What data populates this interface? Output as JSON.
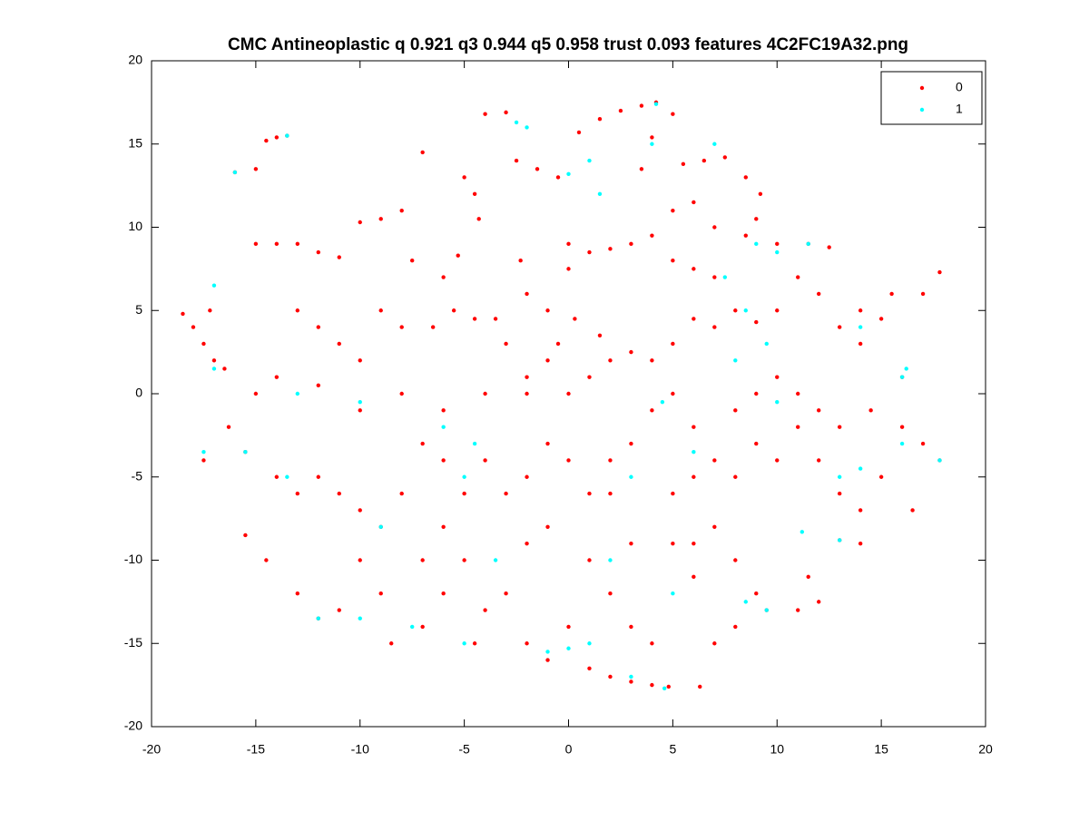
{
  "chart_data": {
    "type": "scatter",
    "title": "CMC Antineoplastic q 0.921 q3 0.944 q5 0.958 trust 0.093 features 4C2FC19A32.png",
    "xlim": [
      -20,
      20
    ],
    "ylim": [
      -20,
      20
    ],
    "xticks": [
      -20,
      -15,
      -10,
      -5,
      0,
      5,
      10,
      15,
      20
    ],
    "yticks": [
      -20,
      -15,
      -10,
      -5,
      0,
      5,
      10,
      15,
      20
    ],
    "grid": false,
    "legend": "top-right",
    "series": [
      {
        "name": "0",
        "color": "#ff0000",
        "x": [
          -18.5,
          -18,
          -17.5,
          -17,
          -16.5,
          -17.2,
          -16.3,
          -17.5,
          -15.5,
          -15.5,
          -16,
          -15,
          -14.5,
          -14,
          -13.5,
          -15,
          -14,
          -13,
          -12,
          -11,
          -10,
          -9,
          -8,
          -7,
          -7.5,
          -6,
          -5.3,
          -5,
          -4.5,
          -4.3,
          -4,
          -3,
          -2.3,
          -2.5,
          -1.5,
          -0.5,
          0.5,
          1.5,
          2.5,
          3.5,
          4.2,
          5,
          4,
          3.5,
          5.5,
          6.5,
          7.5,
          8.5,
          9.2,
          9,
          8.5,
          7,
          6,
          5,
          4,
          3,
          2,
          1,
          0,
          0,
          0.3,
          -0.5,
          -1,
          -2,
          -3.5,
          -4.5,
          -5.5,
          -6.5,
          -8,
          -9,
          -10,
          -11,
          -12,
          -13,
          -14,
          -15,
          -12,
          -10,
          -8,
          -6,
          -4,
          -2,
          0,
          1,
          2,
          3,
          4,
          5,
          6,
          7,
          8,
          9,
          10,
          11,
          12,
          12.5,
          10,
          11.5,
          13,
          14,
          15,
          15.5,
          17,
          17.8,
          14,
          14.5,
          13,
          12,
          11,
          10,
          9,
          8,
          6,
          5,
          4,
          3,
          2,
          1,
          0,
          -1,
          -2,
          -3,
          -4,
          -5,
          -6,
          -7,
          -8,
          -9,
          -10,
          -11,
          -12,
          -13,
          -14,
          -14.5,
          -13,
          -12,
          -11,
          -10,
          -9,
          -8.5,
          -7,
          -6,
          -5,
          -4,
          -3,
          -2,
          -1,
          0,
          1,
          2,
          3,
          4,
          4.8,
          6.3,
          2,
          3,
          4,
          5,
          6,
          7,
          8,
          9,
          9.5,
          8,
          7,
          6,
          5,
          6,
          7,
          8,
          9,
          10,
          11,
          12,
          13,
          14,
          15,
          16,
          17,
          17.8,
          16.5,
          13,
          14,
          11.5,
          11,
          12,
          16,
          -2,
          -1,
          1,
          2,
          3,
          -6,
          -7,
          -4.5,
          1.5,
          -1,
          7,
          6,
          5,
          -3,
          -2
        ],
        "values": [
          4.8,
          4,
          3,
          2,
          1.5,
          5,
          -2,
          -4,
          -3.5,
          -8.5,
          13.3,
          13.5,
          15.2,
          15.4,
          15.5,
          9,
          9,
          9,
          8.5,
          8.2,
          10.3,
          10.5,
          11,
          14.5,
          8,
          7,
          8.3,
          13,
          12,
          10.5,
          16.8,
          16.9,
          8,
          14,
          13.5,
          13,
          15.7,
          16.5,
          17,
          17.3,
          17.5,
          16.8,
          15.4,
          13.5,
          13.8,
          14,
          14.2,
          13,
          12,
          10.5,
          9.5,
          10,
          11.5,
          11,
          9.5,
          9,
          8.7,
          8.5,
          9,
          7.5,
          4.5,
          3,
          5,
          6,
          4.5,
          4.5,
          5,
          4,
          4,
          5,
          2,
          3,
          4,
          5,
          1,
          0,
          0.5,
          -1,
          0,
          -1,
          0,
          0,
          0,
          1,
          2,
          2.5,
          2,
          3,
          4.5,
          4,
          5,
          4.3,
          5,
          7,
          6,
          8.8,
          9,
          9,
          4,
          5,
          4.5,
          6,
          6,
          7.3,
          3,
          -1,
          -2,
          -1,
          0,
          1,
          0,
          -1,
          -2,
          0,
          -1,
          -3,
          -4,
          -6,
          -4,
          -3,
          -5,
          -6,
          -4,
          -6,
          -4,
          -3,
          -6,
          -8,
          -7,
          -6,
          -5,
          -6,
          -5,
          -10,
          -12,
          -13.5,
          -13,
          -10,
          -12,
          -15,
          -14,
          -12,
          -10,
          -13,
          -12,
          -15,
          -16,
          -14,
          -16.5,
          -17,
          -17.3,
          -17.5,
          -17.6,
          -17.6,
          -12,
          -14,
          -15,
          -9,
          -9,
          -8,
          -10,
          -12,
          -13,
          -14,
          -15,
          -11,
          -6,
          -5,
          -4,
          -5,
          -3,
          -4,
          -2,
          -4,
          -6,
          -7,
          -5,
          -2,
          -3,
          -4,
          -7,
          -8.8,
          -9,
          -11,
          -13,
          -12.5,
          1,
          -9,
          -8,
          -10,
          -6,
          -9,
          -8,
          -10,
          -15,
          3.5,
          2,
          7,
          7.5,
          8,
          3,
          1
        ]
      },
      {
        "name": "1",
        "color": "#00ffff",
        "x": [
          -16,
          -13.5,
          -17,
          -17,
          -17.5,
          -15.5,
          -13,
          -10,
          -9,
          -13.5,
          -12,
          -10,
          -7.5,
          -5,
          -3.5,
          -5,
          -6,
          -2.5,
          -2,
          0,
          1,
          1.5,
          4.2,
          4,
          7,
          9,
          10,
          11.5,
          7.5,
          8.5,
          9.5,
          14,
          16,
          16.2,
          17.8,
          16,
          14,
          13,
          11.2,
          13,
          9.5,
          8.5,
          5,
          4.6,
          3,
          0,
          1,
          -1,
          2,
          3,
          4.5,
          10,
          8,
          6,
          -4.5
        ],
        "values": [
          13.3,
          15.5,
          6.5,
          1.5,
          -3.5,
          -3.5,
          0,
          -0.5,
          -8,
          -5,
          -13.5,
          -13.5,
          -14,
          -15,
          -10,
          -5,
          -2,
          16.3,
          16,
          13.2,
          14,
          12,
          17.4,
          15,
          15,
          9,
          8.5,
          9,
          7,
          5,
          3,
          4,
          1,
          1.5,
          -4,
          -3,
          -4.5,
          -5,
          -8.3,
          -8.8,
          -13,
          -12.5,
          -12,
          -17.7,
          -17,
          -15.3,
          -15,
          -15.5,
          -10,
          -5,
          -0.5,
          -0.5,
          2,
          -3.5,
          -3
        ]
      }
    ]
  }
}
